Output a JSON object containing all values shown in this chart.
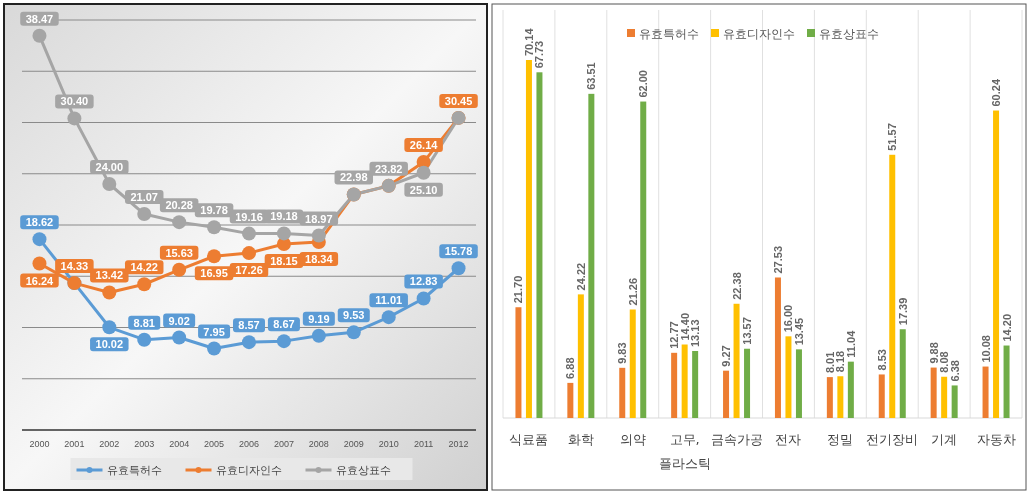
{
  "chart_data": [
    {
      "type": "line",
      "categories": [
        "2000",
        "2001",
        "2002",
        "2003",
        "2004",
        "2005",
        "2006",
        "2007",
        "2008",
        "2009",
        "2010",
        "2011",
        "2012"
      ],
      "ylim": [
        0,
        40
      ],
      "yticks": [
        {
          "value": 0,
          "label": null
        },
        {
          "value": 5,
          "label": null
        },
        {
          "value": 10,
          "label": null
        },
        {
          "value": 15,
          "label": null
        },
        {
          "value": 20,
          "label": null
        },
        {
          "value": 25,
          "label": null
        },
        {
          "value": 30,
          "label": null
        },
        {
          "value": 35,
          "label": null
        },
        {
          "value": 40,
          "label": null
        }
      ],
      "grid": "y",
      "legend": "bottom",
      "marker": "circle",
      "series": [
        {
          "name": "유효특허수",
          "color": "#5b9bd5",
          "values": [
            18.62,
            14.33,
            10.02,
            8.81,
            9.02,
            7.95,
            8.57,
            8.67,
            9.19,
            9.53,
            11.01,
            12.83,
            15.78
          ],
          "value_labels": [
            "18.62",
            null,
            "10.02",
            "8.81",
            "9.02",
            "7.95",
            "8.57",
            "8.67",
            "9.19",
            "9.53",
            "11.01",
            "12.83",
            "15.78"
          ]
        },
        {
          "name": "유효디자인수",
          "color": "#ed7d31",
          "values": [
            16.24,
            14.33,
            13.42,
            14.22,
            15.63,
            16.95,
            17.26,
            18.15,
            18.34,
            22.98,
            23.82,
            26.14,
            30.45
          ],
          "value_labels": [
            "16.24",
            "14.33",
            "13.42",
            "14.22",
            "15.63",
            "16.95",
            "17.26",
            "18.15",
            "18.34",
            null,
            null,
            "26.14",
            "30.45"
          ]
        },
        {
          "name": "유효상표수",
          "color": "#a5a5a5",
          "values": [
            38.47,
            30.4,
            24.0,
            21.07,
            20.28,
            19.78,
            19.16,
            19.18,
            18.97,
            22.98,
            23.82,
            25.1,
            30.45
          ],
          "value_labels": [
            "38.47",
            "30.40",
            "24.00",
            "21.07",
            "20.28",
            "19.78",
            "19.16",
            "19.18",
            "18.97",
            "22.98",
            "23.82",
            "25.10",
            null
          ]
        }
      ]
    },
    {
      "type": "bar",
      "categories": [
        "식료품",
        "화학",
        "의약",
        "고무,\n플라스틱",
        "금속가공",
        "전자",
        "정밀",
        "전기장비",
        "기계",
        "자동차"
      ],
      "legend": "top",
      "grid": "x",
      "series": [
        {
          "name": "유효특허수",
          "color": "#ed7d31",
          "values": [
            21.7,
            6.88,
            9.83,
            12.77,
            9.27,
            27.53,
            8.01,
            8.53,
            9.88,
            10.08
          ],
          "value_labels": [
            "21.70",
            "6.88",
            "9.83",
            "12.77",
            "9.27",
            "27.53",
            "8.01",
            "8.53",
            "9.88",
            "10.08"
          ]
        },
        {
          "name": "유효디자인수",
          "color": "#ffc000",
          "values": [
            70.14,
            24.22,
            21.26,
            14.4,
            22.38,
            16.0,
            8.18,
            51.57,
            8.08,
            60.24
          ],
          "value_labels": [
            "70.14",
            "24.22",
            "21.26",
            "14.40",
            "22.38",
            "16.00",
            "8.18",
            "51.57",
            "8.08",
            "60.24"
          ]
        },
        {
          "name": "유효상표수",
          "color": "#70ad47",
          "values": [
            67.73,
            63.51,
            62.0,
            13.13,
            13.57,
            13.45,
            11.04,
            17.39,
            6.38,
            14.2
          ],
          "value_labels": [
            "67.73",
            "63.51",
            "62.00",
            "13.13",
            "13.57",
            "13.45",
            "11.04",
            "17.39",
            "6.38",
            "14.20"
          ]
        }
      ]
    }
  ]
}
